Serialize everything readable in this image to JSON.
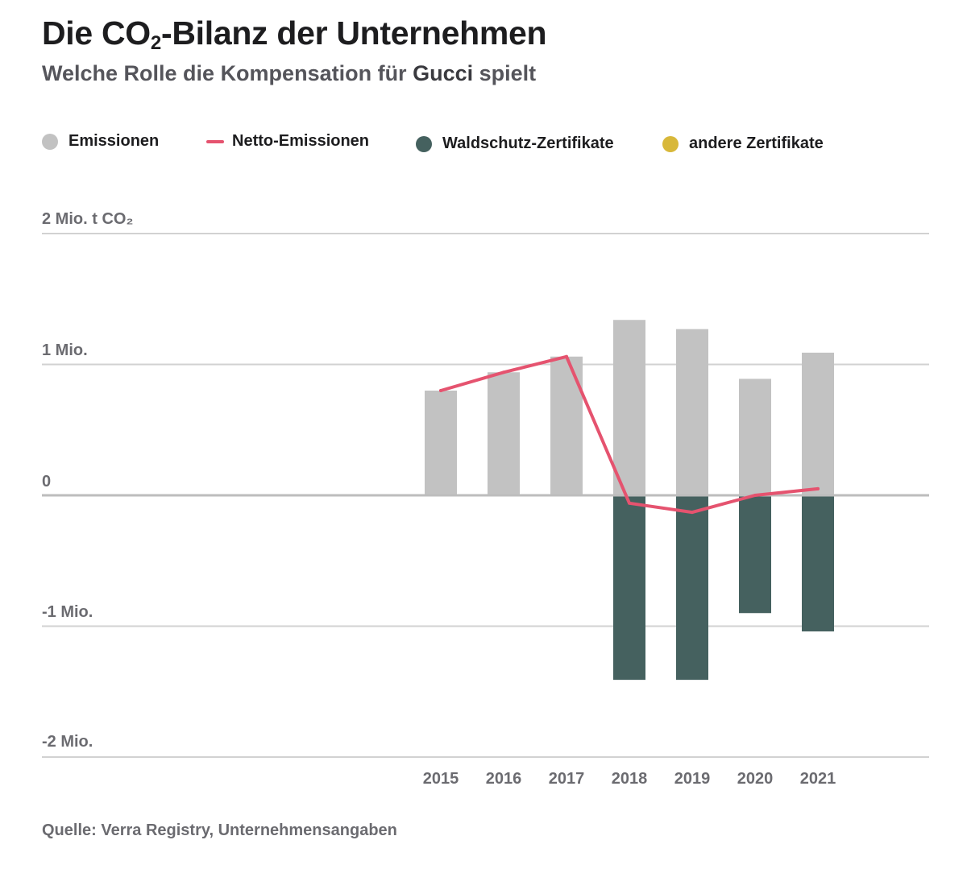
{
  "header": {
    "title_pre": "Die CO",
    "title_sub": "2",
    "title_post": "-Bilanz der Unternehmen",
    "subtitle_pre": "Welche Rolle die Kompensation für ",
    "subtitle_company": "Gucci",
    "subtitle_post": " spielt"
  },
  "legend": [
    {
      "label": "Emissionen",
      "color": "#c2c2c2",
      "shape": "dot"
    },
    {
      "label": "Netto-Emissionen",
      "color": "#e5536f",
      "shape": "line"
    },
    {
      "label": "Waldschutz-Zertifikate",
      "color": "#45615f",
      "shape": "dot"
    },
    {
      "label": "andere Zertifikate",
      "color": "#d8b83a",
      "shape": "dot"
    }
  ],
  "source": "Quelle: Verra Registry, Unternehmensangaben",
  "chart_data": {
    "type": "bar",
    "unit": "Mio. t CO₂",
    "categories": [
      "2015",
      "2016",
      "2017",
      "2018",
      "2019",
      "2020",
      "2021"
    ],
    "series": [
      {
        "name": "Emissionen",
        "type": "bar",
        "color": "#c2c2c2",
        "values": [
          0.8,
          0.94,
          1.06,
          1.34,
          1.27,
          0.89,
          1.09
        ]
      },
      {
        "name": "Waldschutz-Zertifikate",
        "type": "bar",
        "color": "#45615f",
        "values": [
          0,
          0,
          0,
          -1.41,
          -1.41,
          -0.9,
          -1.04
        ]
      },
      {
        "name": "andere Zertifikate",
        "type": "bar",
        "color": "#d8b83a",
        "values": [
          0,
          0,
          0,
          0,
          0,
          0,
          0
        ]
      },
      {
        "name": "Netto-Emissionen",
        "type": "line",
        "color": "#e5536f",
        "values": [
          0.8,
          0.94,
          1.06,
          -0.06,
          -0.13,
          0.0,
          0.05
        ]
      }
    ],
    "ylim": [
      -2,
      2
    ],
    "yticks": [
      {
        "value": 2,
        "label": "2 Mio. t CO₂"
      },
      {
        "value": 1,
        "label": "1 Mio."
      },
      {
        "value": 0,
        "label": "0"
      },
      {
        "value": -1,
        "label": "-1 Mio."
      },
      {
        "value": -2,
        "label": "-2 Mio."
      }
    ],
    "grid": true,
    "legend_position": "top-left"
  }
}
